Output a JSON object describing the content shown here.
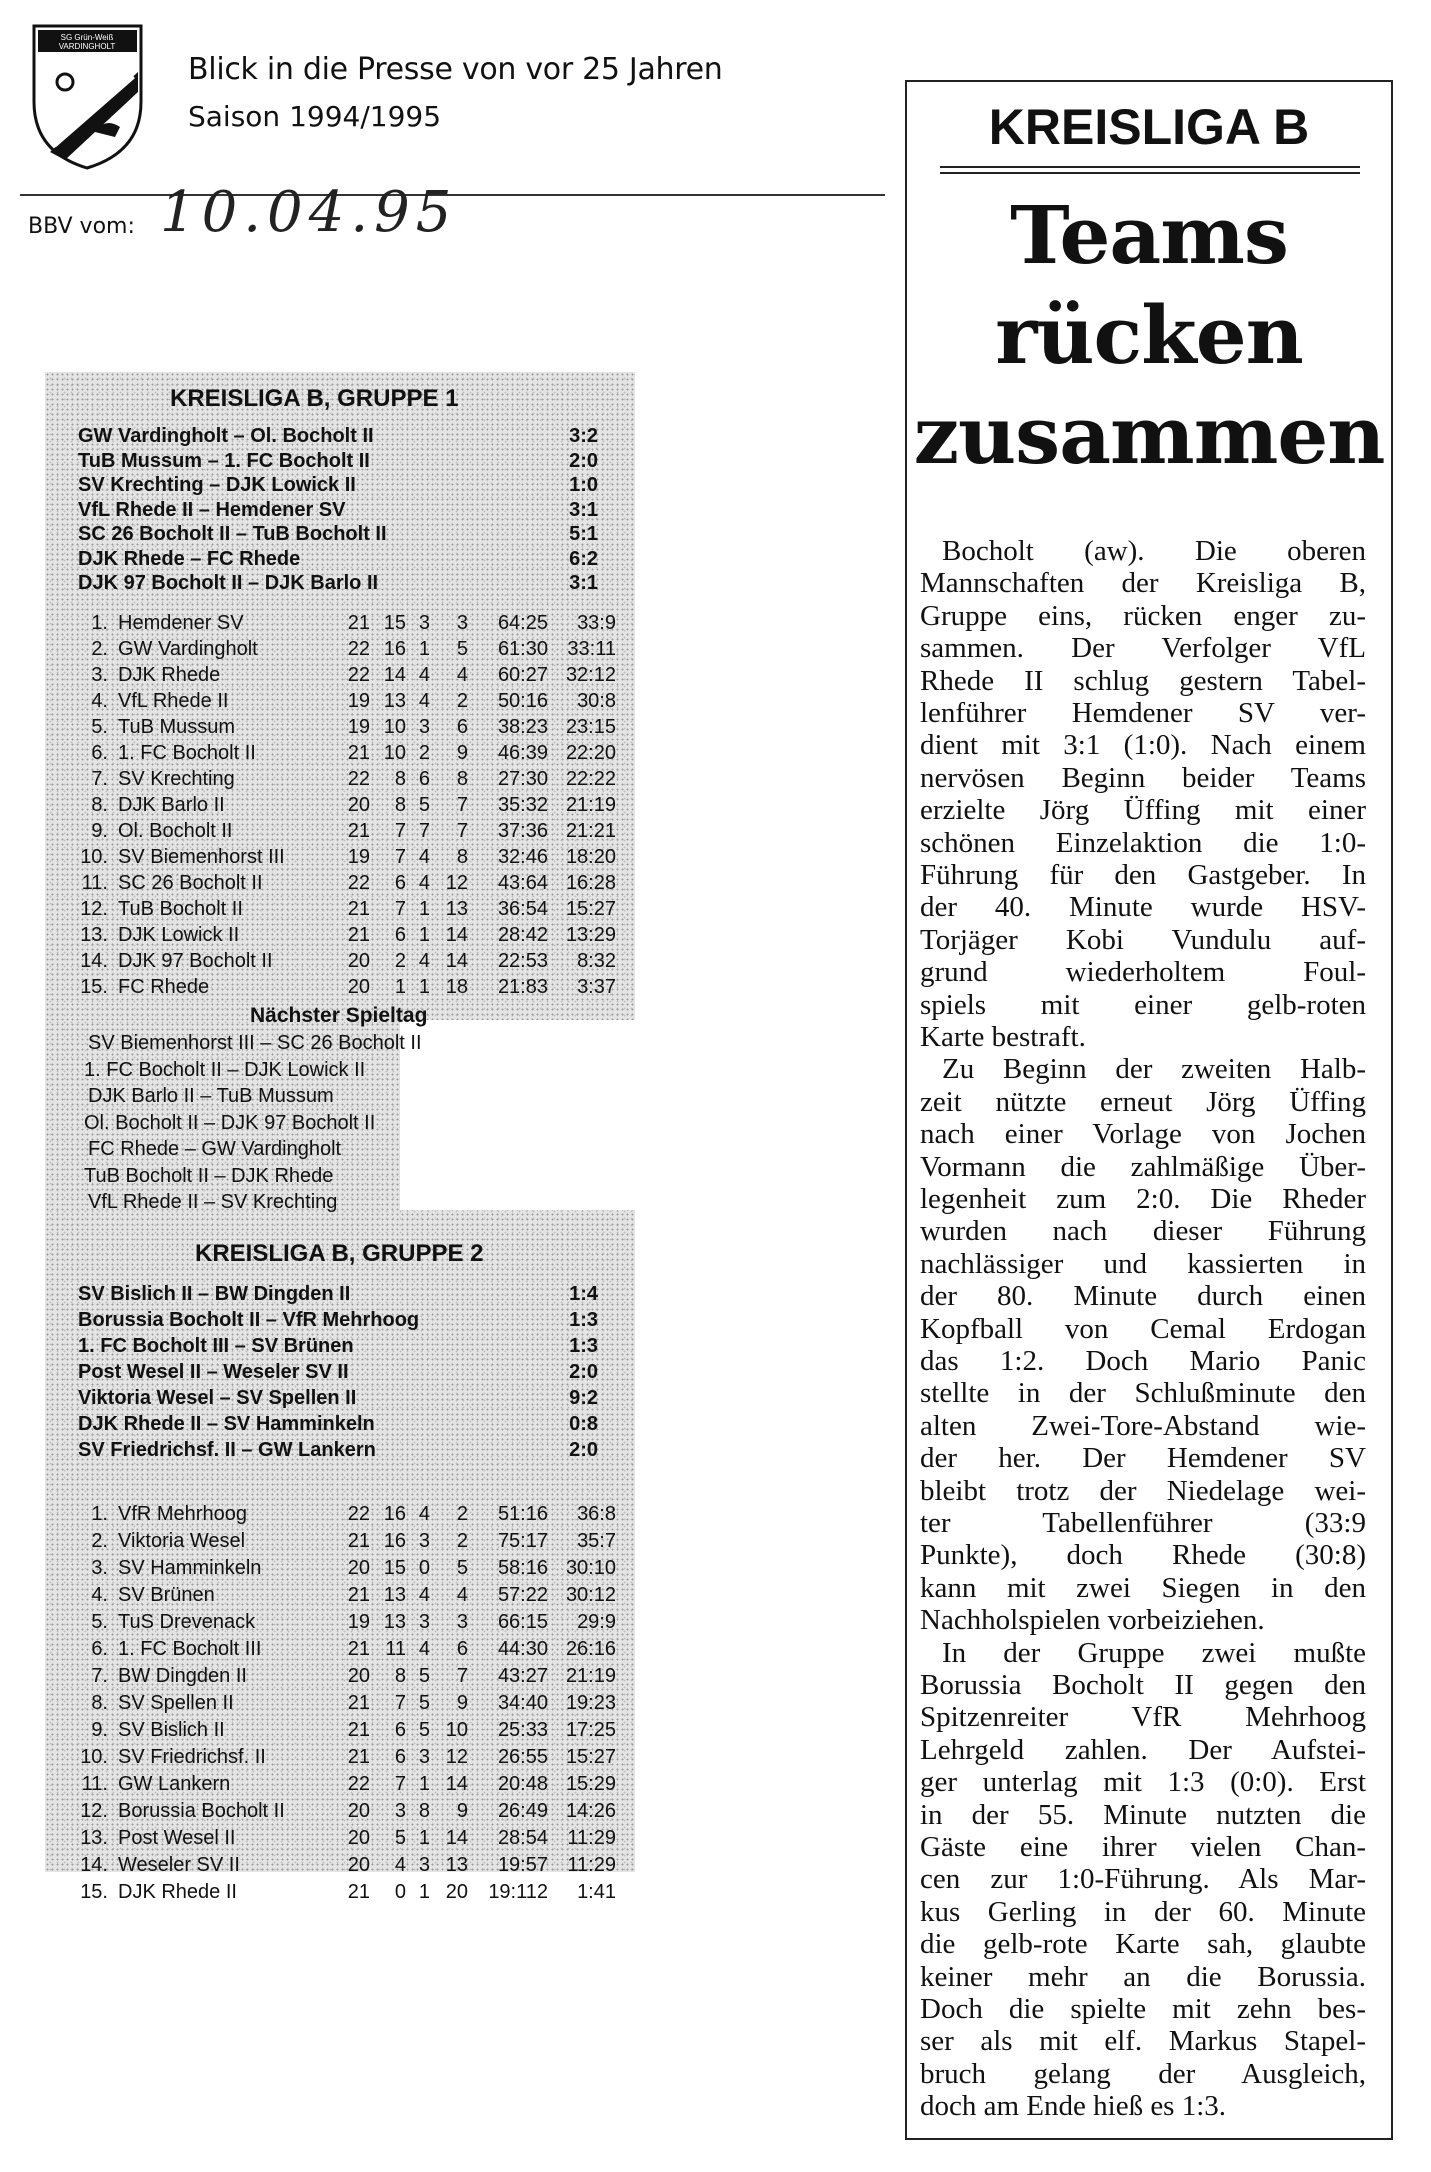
{
  "header": {
    "logo_text": "SG Grün-Weiß Vardingholt",
    "title": "Blick in die Presse von vor 25 Jahren",
    "season": "Saison 1994/1995",
    "bbv_label": "BBV vom:",
    "date_handwritten": "10.04.95"
  },
  "group1": {
    "title": "KREISLIGA B, GRUPPE 1",
    "results": [
      {
        "match": "GW Vardingholt – Ol. Bocholt II",
        "score": "3:2"
      },
      {
        "match": "TuB Mussum – 1. FC Bocholt II",
        "score": "2:0"
      },
      {
        "match": "SV Krechting – DJK Lowick II",
        "score": "1:0"
      },
      {
        "match": "VfL Rhede II – Hemdener SV",
        "score": "3:1"
      },
      {
        "match": "SC 26 Bocholt II – TuB Bocholt II",
        "score": "5:1"
      },
      {
        "match": "DJK Rhede – FC Rhede",
        "score": "6:2"
      },
      {
        "match": "DJK 97 Bocholt II – DJK Barlo II",
        "score": "3:1"
      }
    ],
    "standings": [
      [
        "1.",
        "Hemdener SV",
        "21",
        "15",
        "3",
        "3",
        "64:25",
        "33:9"
      ],
      [
        "2.",
        "GW Vardingholt",
        "22",
        "16",
        "1",
        "5",
        "61:30",
        "33:11"
      ],
      [
        "3.",
        "DJK Rhede",
        "22",
        "14",
        "4",
        "4",
        "60:27",
        "32:12"
      ],
      [
        "4.",
        "VfL Rhede II",
        "19",
        "13",
        "4",
        "2",
        "50:16",
        "30:8"
      ],
      [
        "5.",
        "TuB Mussum",
        "19",
        "10",
        "3",
        "6",
        "38:23",
        "23:15"
      ],
      [
        "6.",
        "1. FC Bocholt II",
        "21",
        "10",
        "2",
        "9",
        "46:39",
        "22:20"
      ],
      [
        "7.",
        "SV Krechting",
        "22",
        "8",
        "6",
        "8",
        "27:30",
        "22:22"
      ],
      [
        "8.",
        "DJK Barlo II",
        "20",
        "8",
        "5",
        "7",
        "35:32",
        "21:19"
      ],
      [
        "9.",
        "Ol. Bocholt II",
        "21",
        "7",
        "7",
        "7",
        "37:36",
        "21:21"
      ],
      [
        "10.",
        "SV Biemenhorst III",
        "19",
        "7",
        "4",
        "8",
        "32:46",
        "18:20"
      ],
      [
        "11.",
        "SC 26 Bocholt II",
        "22",
        "6",
        "4",
        "12",
        "43:64",
        "16:28"
      ],
      [
        "12.",
        "TuB Bocholt II",
        "21",
        "7",
        "1",
        "13",
        "36:54",
        "15:27"
      ],
      [
        "13.",
        "DJK Lowick II",
        "21",
        "6",
        "1",
        "14",
        "28:42",
        "13:29"
      ],
      [
        "14.",
        "DJK 97 Bocholt II",
        "20",
        "2",
        "4",
        "14",
        "22:53",
        "8:32"
      ],
      [
        "15.",
        "FC Rhede",
        "20",
        "1",
        "1",
        "18",
        "21:83",
        "3:37"
      ]
    ],
    "next_title": "Nächster Spieltag",
    "next": [
      "SV Biemenhorst III – SC 26 Bocholt II",
      "1. FC Bocholt II – DJK Lowick II",
      "DJK Barlo II – TuB Mussum",
      "Ol. Bocholt II – DJK 97 Bocholt II",
      "FC Rhede – GW Vardingholt",
      "TuB Bocholt II – DJK Rhede",
      "VfL Rhede II – SV Krechting"
    ]
  },
  "group2": {
    "title": "KREISLIGA B, GRUPPE 2",
    "results": [
      {
        "match": "SV Bislich II – BW Dingden II",
        "score": "1:4"
      },
      {
        "match": "Borussia Bocholt II – VfR Mehrhoog",
        "score": "1:3"
      },
      {
        "match": "1. FC Bocholt III – SV Brünen",
        "score": "1:3"
      },
      {
        "match": "Post Wesel II – Weseler SV II",
        "score": "2:0"
      },
      {
        "match": "Viktoria Wesel – SV Spellen II",
        "score": "9:2"
      },
      {
        "match": "DJK Rhede II – SV Hamminkeln",
        "score": "0:8"
      },
      {
        "match": "SV Friedrichsf. II – GW Lankern",
        "score": "2:0"
      }
    ],
    "standings": [
      [
        "1.",
        "VfR Mehrhoog",
        "22",
        "16",
        "4",
        "2",
        "51:16",
        "36:8"
      ],
      [
        "2.",
        "Viktoria Wesel",
        "21",
        "16",
        "3",
        "2",
        "75:17",
        "35:7"
      ],
      [
        "3.",
        "SV Hamminkeln",
        "20",
        "15",
        "0",
        "5",
        "58:16",
        "30:10"
      ],
      [
        "4.",
        "SV Brünen",
        "21",
        "13",
        "4",
        "4",
        "57:22",
        "30:12"
      ],
      [
        "5.",
        "TuS Drevenack",
        "19",
        "13",
        "3",
        "3",
        "66:15",
        "29:9"
      ],
      [
        "6.",
        "1. FC Bocholt III",
        "21",
        "11",
        "4",
        "6",
        "44:30",
        "26:16"
      ],
      [
        "7.",
        "BW Dingden II",
        "20",
        "8",
        "5",
        "7",
        "43:27",
        "21:19"
      ],
      [
        "8.",
        "SV Spellen II",
        "21",
        "7",
        "5",
        "9",
        "34:40",
        "19:23"
      ],
      [
        "9.",
        "SV Bislich II",
        "21",
        "6",
        "5",
        "10",
        "25:33",
        "17:25"
      ],
      [
        "10.",
        "SV Friedrichsf. II",
        "21",
        "6",
        "3",
        "12",
        "26:55",
        "15:27"
      ],
      [
        "11.",
        "GW Lankern",
        "22",
        "7",
        "1",
        "14",
        "20:48",
        "15:29"
      ],
      [
        "12.",
        "Borussia Bocholt II",
        "20",
        "3",
        "8",
        "9",
        "26:49",
        "14:26"
      ],
      [
        "13.",
        "Post Wesel II",
        "20",
        "5",
        "1",
        "14",
        "28:54",
        "11:29"
      ],
      [
        "14.",
        "Weseler SV II",
        "20",
        "4",
        "3",
        "13",
        "19:57",
        "11:29"
      ],
      [
        "15.",
        "DJK Rhede II",
        "21",
        "0",
        "1",
        "20",
        "19:112",
        "1:41"
      ]
    ]
  },
  "article": {
    "kicker": "KREISLIGA B",
    "headline": [
      "Teams",
      "rücken",
      "zusammen"
    ],
    "lines": [
      "Bocholt (aw). Die oberen",
      "Mannschaften der Kreisliga B,",
      "Gruppe eins, rücken enger zu-",
      "sammen. Der Verfolger VfL",
      "Rhede II schlug gestern Tabel-",
      "lenführer Hemdener SV ver-",
      "dient mit 3:1 (1:0). Nach einem",
      "nervösen Beginn beider Teams",
      "erzielte Jörg Üffing mit einer",
      "schönen Einzelaktion die 1:0-",
      "Führung für den Gastgeber. In",
      "der 40. Minute wurde HSV-",
      "Torjäger Kobi Vundulu auf-",
      "grund wiederholtem Foul-",
      "spiels mit einer gelb-roten",
      "Karte bestraft.",
      "Zu Beginn der zweiten Halb-",
      "zeit nützte erneut Jörg Üffing",
      "nach einer Vorlage von Jochen",
      "Vormann die zahlmäßige Über-",
      "legenheit zum 2:0. Die Rheder",
      "wurden nach dieser Führung",
      "nachlässiger und kassierten in",
      "der 80. Minute durch einen",
      "Kopfball von Cemal Erdogan",
      "das 1:2. Doch Mario Panic",
      "stellte in der Schlußminute den",
      "alten Zwei-Tore-Abstand wie-",
      "der her. Der Hemdener SV",
      "bleibt trotz der Niedelage wei-",
      "ter Tabellenführer (33:9",
      "Punkte), doch Rhede (30:8)",
      "kann mit zwei Siegen in den",
      "Nachholspielen vorbeiziehen.",
      "In der Gruppe zwei mußte",
      "Borussia Bocholt II gegen den",
      "Spitzenreiter VfR Mehrhoog",
      "Lehrgeld zahlen. Der Aufstei-",
      "ger unterlag mit 1:3 (0:0). Erst",
      "in der 55. Minute nutzten die",
      "Gäste eine ihrer vielen Chan-",
      "cen zur 1:0-Führung. Als Mar-",
      "kus Gerling in der 60. Minute",
      "die gelb-rote Karte sah, glaubte",
      "keiner mehr an die Borussia.",
      "Doch die spielte mit zehn bes-",
      "ser als mit elf. Markus Stapel-",
      "bruch gelang der Ausgleich,",
      "doch am Ende hieß es 1:3."
    ]
  }
}
